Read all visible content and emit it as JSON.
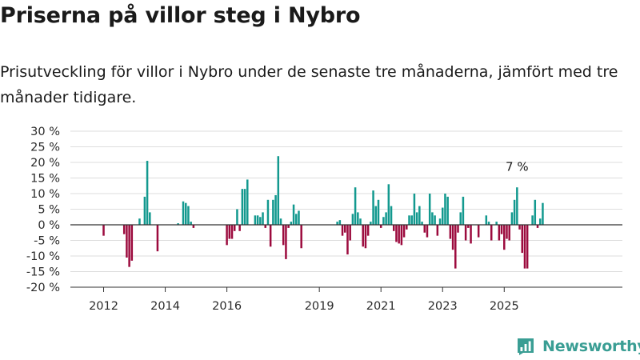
{
  "title": "Priserna på villor steg i Nybro",
  "subtitle": "Prisutveckling för villor i Nybro under de senaste tre månaderna, jämfört med tre månader tidigare.",
  "brand": {
    "name": "Newsworthy",
    "icon": "newsworthy-logo-icon"
  },
  "colors": {
    "positive": "#13998f",
    "negative": "#9c0b3e",
    "grid": "#dddddd",
    "zero_line": "#333333"
  },
  "chart_data": {
    "type": "bar",
    "title": "",
    "xlabel": "",
    "ylabel": "",
    "x_start": "2011-01",
    "x_interval": "month",
    "ylim": [
      -20,
      30
    ],
    "y_ticks": [
      30,
      25,
      20,
      15,
      10,
      5,
      0,
      -5,
      -10,
      -15,
      -20
    ],
    "y_tick_labels": [
      "30 %",
      "25 %",
      "20 %",
      "15 %",
      "10 %",
      "5 %",
      "0 %",
      "-5 %",
      "-10 %",
      "-15 %",
      "-20 %"
    ],
    "x_tick_labels": [
      "2012",
      "2014",
      "2016",
      "2019",
      "2021",
      "2023",
      "2025"
    ],
    "x_tick_positions": [
      "2012-01",
      "2014-01",
      "2016-01",
      "2019-01",
      "2021-01",
      "2023-01",
      "2025-01"
    ],
    "grid": true,
    "annotations": [
      {
        "text": "7 %",
        "x": "2025-06",
        "y": 7
      }
    ],
    "values": [
      0,
      0,
      0,
      0,
      0,
      0,
      0,
      0,
      0,
      0,
      0,
      0,
      -3.5,
      0,
      0,
      0,
      0,
      0,
      0,
      0,
      -3,
      -10.5,
      -13.5,
      -11.5,
      0,
      0,
      2,
      0,
      9,
      20.5,
      4,
      0,
      0,
      -8.5,
      0,
      0,
      0,
      0,
      0,
      0,
      0,
      0.5,
      0,
      7.5,
      7,
      6,
      1,
      -1,
      0,
      0,
      0,
      0,
      0,
      0,
      0,
      0,
      0,
      0,
      0,
      0,
      -6.5,
      -4.5,
      -4.5,
      -2,
      5,
      -2,
      11.5,
      11.5,
      14.5,
      0,
      0,
      3,
      3,
      2.5,
      4,
      -1,
      8,
      -7,
      8,
      9.5,
      22,
      2,
      -6.5,
      -11,
      -1,
      1,
      6.5,
      3.5,
      4.5,
      -7.5,
      0,
      0,
      0,
      0,
      0,
      0,
      0,
      0,
      0,
      0,
      0,
      0,
      0,
      1,
      1.5,
      -3.5,
      -2.5,
      -9.5,
      -5,
      3.5,
      12,
      4,
      2,
      -7,
      -7.5,
      -3.5,
      1,
      11,
      6,
      8,
      -1,
      2.5,
      4,
      13,
      6,
      -2,
      -5.5,
      -6,
      -6.5,
      -4,
      -1.5,
      3,
      3,
      10,
      4,
      6,
      1,
      -2.5,
      -4,
      10,
      4,
      3,
      -3.5,
      2,
      5.5,
      10,
      9,
      -4.5,
      -8,
      -14,
      -2.5,
      4,
      9,
      -5,
      -1,
      -6,
      0,
      0,
      -4,
      0,
      0,
      3,
      1,
      -5,
      0,
      1,
      -5,
      -3,
      -8,
      -4.5,
      -5,
      4,
      8,
      12,
      -1.5,
      -9,
      -14,
      -14,
      0,
      3,
      8,
      -1,
      2,
      7
    ]
  }
}
